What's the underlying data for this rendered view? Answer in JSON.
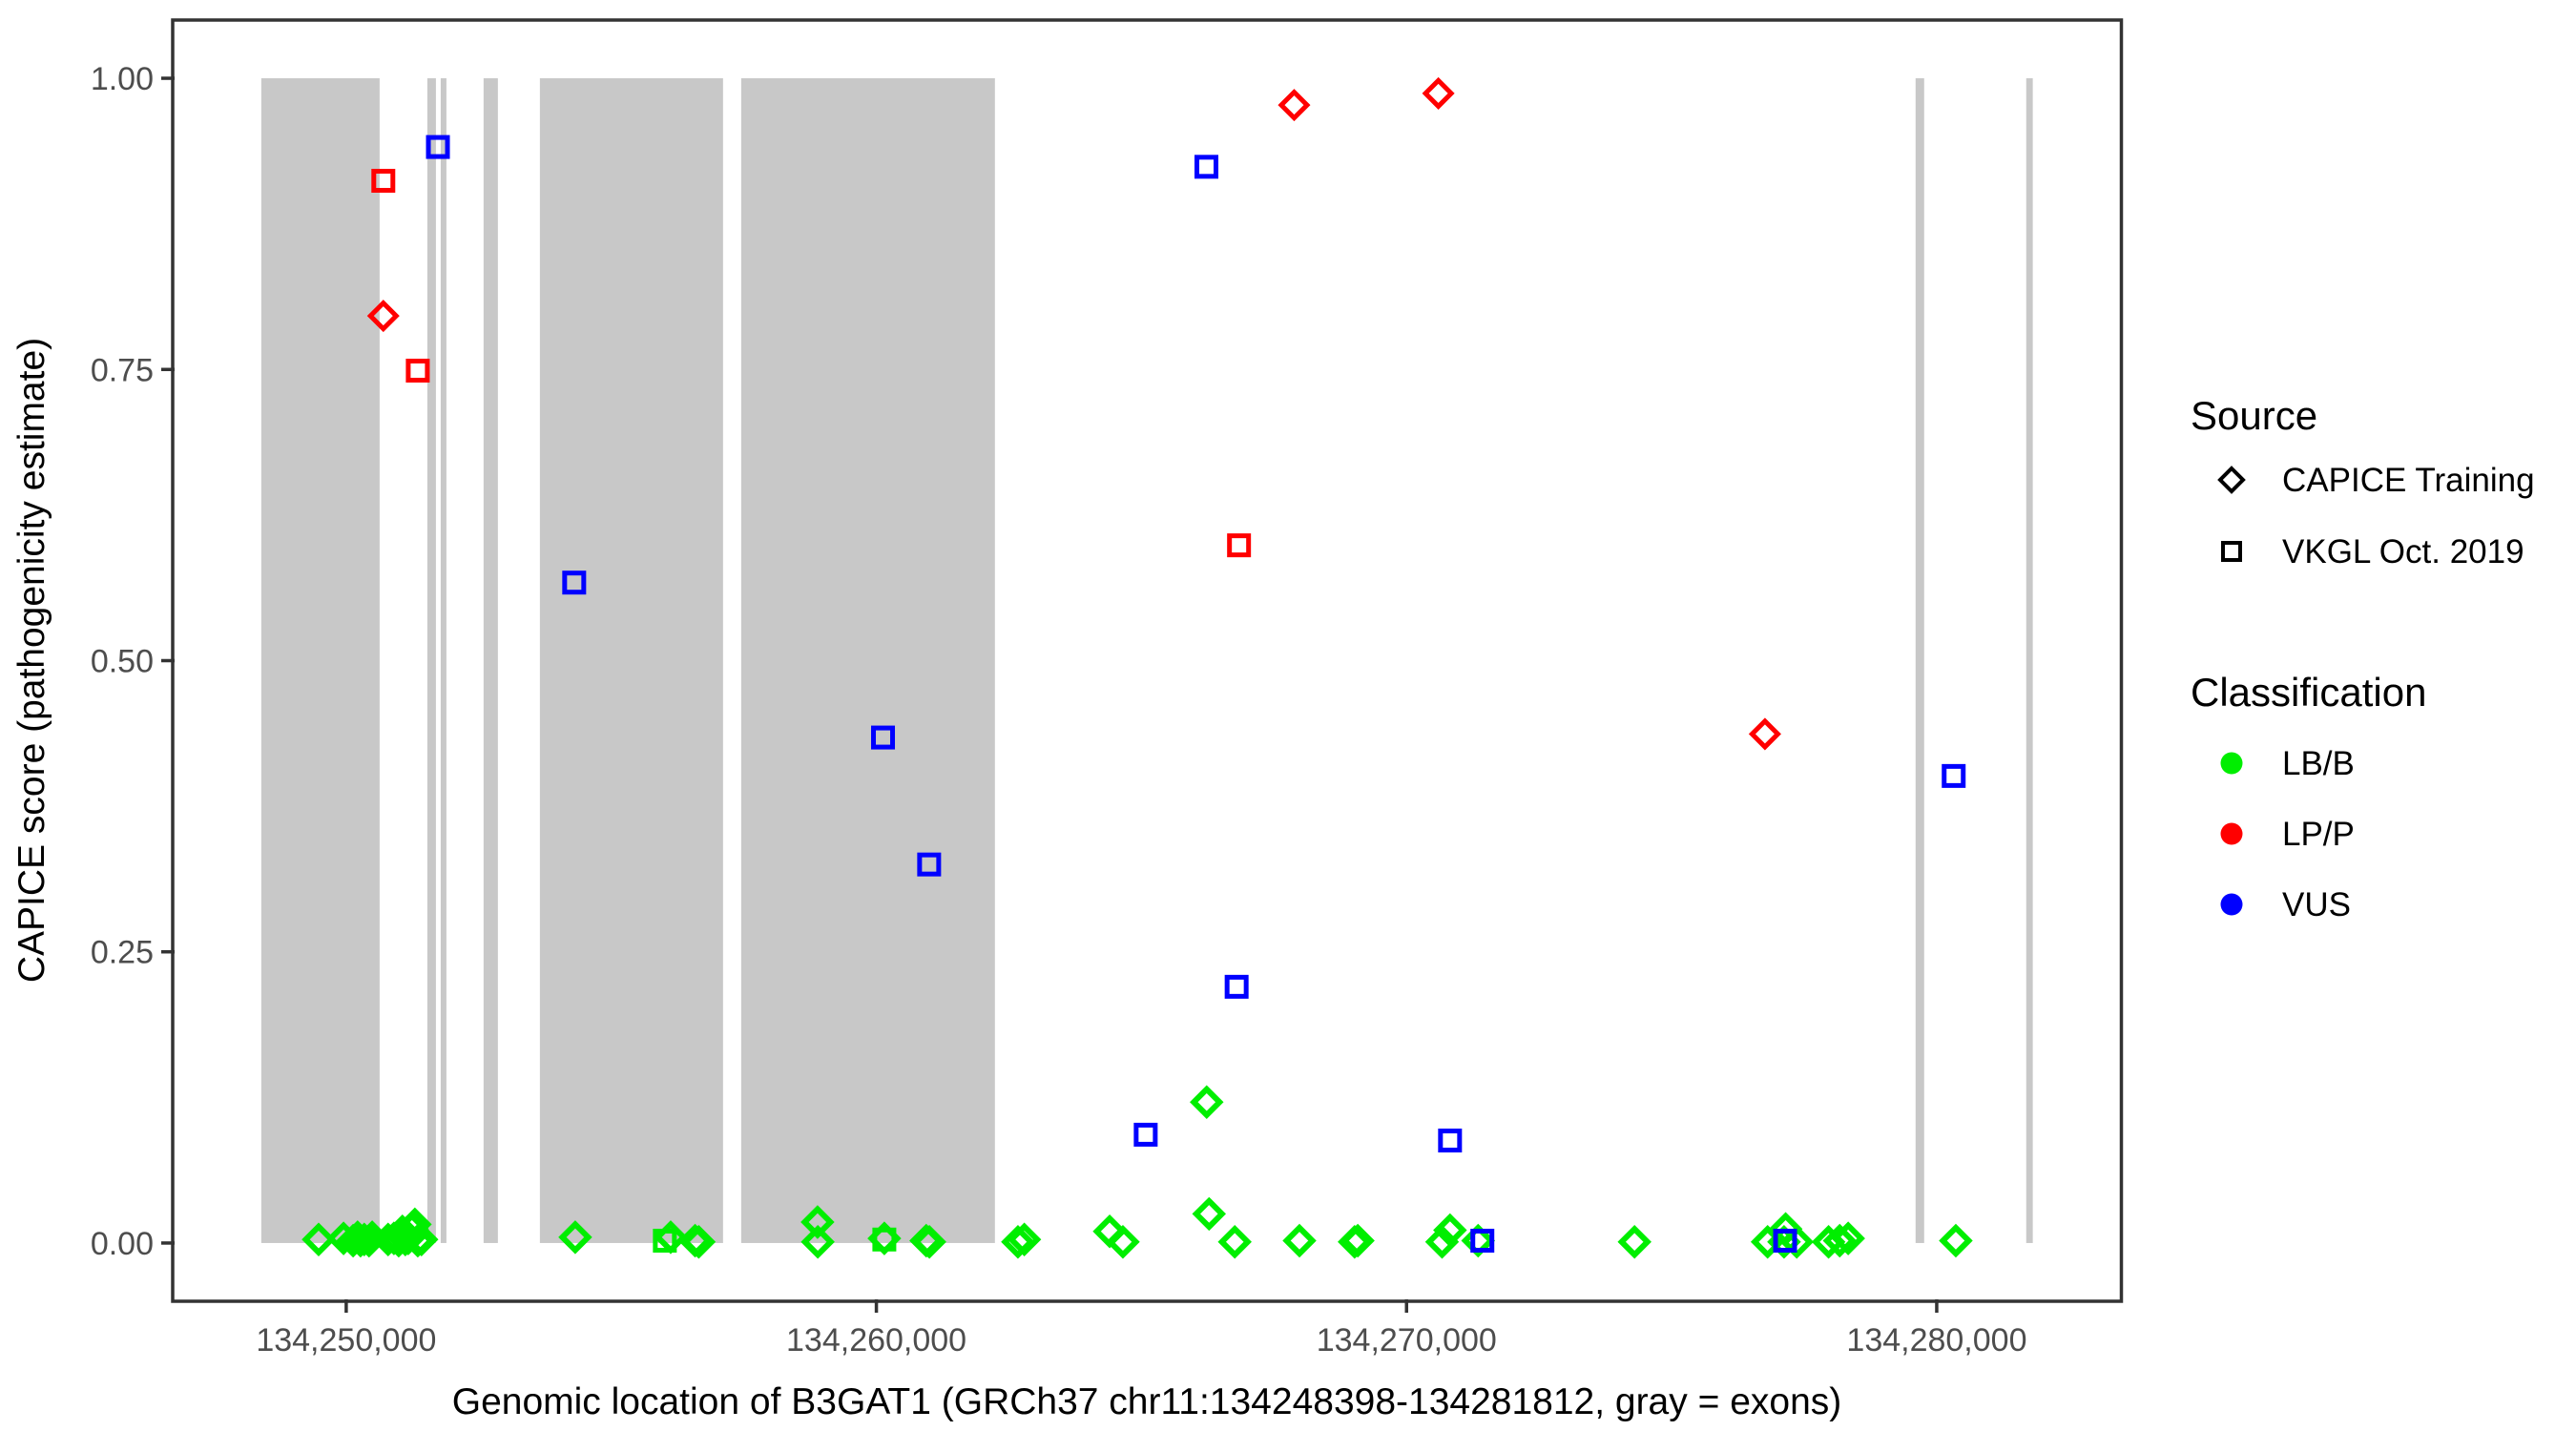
{
  "colors": {
    "lbb": "#00EE00",
    "lpp": "#FF0000",
    "vus": "#0000FF",
    "exon": "#C8C8C8",
    "panel_border": "#333333",
    "tick": "#333333",
    "tick_label": "#4D4D4D",
    "axis_title": "#000000",
    "legend_text": "#000000",
    "background": "#FFFFFF"
  },
  "legend": {
    "source": {
      "title": "Source",
      "entries": [
        {
          "label": "CAPICE Training",
          "marker": "diamond"
        },
        {
          "label": "VKGL Oct. 2019",
          "marker": "square"
        }
      ]
    },
    "classification": {
      "title": "Classification",
      "entries": [
        {
          "label": "LB/B",
          "color_key": "lbb"
        },
        {
          "label": "LP/P",
          "color_key": "lpp"
        },
        {
          "label": "VUS",
          "color_key": "vus"
        }
      ]
    }
  },
  "chart_data": {
    "type": "scatter",
    "xlabel": "Genomic location of B3GAT1 (GRCh37 chr11:134248398-134281812, gray = exons)",
    "ylabel": "CAPICE score (pathogenicity estimate)",
    "x_range": [
      134246727,
      134283483
    ],
    "y_range": [
      -0.05,
      1.05
    ],
    "grid": false,
    "legend_position": "right",
    "x_ticks": [
      {
        "value": 134250000,
        "label": "134,250,000"
      },
      {
        "value": 134260000,
        "label": "134,260,000"
      },
      {
        "value": 134270000,
        "label": "134,270,000"
      },
      {
        "value": 134280000,
        "label": "134,280,000"
      }
    ],
    "y_ticks": [
      {
        "value": 0.0,
        "label": "0.00"
      },
      {
        "value": 0.25,
        "label": "0.25"
      },
      {
        "value": 0.5,
        "label": "0.50"
      },
      {
        "value": 0.75,
        "label": "0.75"
      },
      {
        "value": 1.0,
        "label": "1.00"
      }
    ],
    "exons_note": "gray rectangles span CAPICE score 0 to 1",
    "exons": [
      [
        134248398,
        134250630
      ],
      [
        134251530,
        134251692
      ],
      [
        134251782,
        134251890
      ],
      [
        134252591,
        134252861
      ],
      [
        134253653,
        134257108
      ],
      [
        134257450,
        134262236
      ],
      [
        134279601,
        134279763
      ],
      [
        134281688,
        134281812
      ]
    ],
    "source_codes": {
      "T": "CAPICE Training",
      "V": "VKGL Oct. 2019"
    },
    "class_codes": {
      "LB/B": "lbb",
      "LP/P": "lpp",
      "VUS": "vus"
    },
    "points": [
      [
        134249480,
        0.003,
        "T",
        "LB/B"
      ],
      [
        134249950,
        0.004,
        "T",
        "LB/B"
      ],
      [
        134250130,
        0.002,
        "T",
        "LB/B"
      ],
      [
        134250215,
        0.005,
        "T",
        "LB/B"
      ],
      [
        134250270,
        0.002,
        "T",
        "LB/B"
      ],
      [
        134250340,
        0.003,
        "T",
        "LB/B"
      ],
      [
        134250430,
        0.002,
        "T",
        "LB/B"
      ],
      [
        134250490,
        0.005,
        "T",
        "LB/B"
      ],
      [
        134250790,
        0.003,
        "T",
        "LB/B"
      ],
      [
        134250900,
        0.004,
        "T",
        "LB/B"
      ],
      [
        134250990,
        0.002,
        "T",
        "LB/B"
      ],
      [
        134251060,
        0.01,
        "T",
        "LB/B"
      ],
      [
        134251115,
        0.003,
        "T",
        "LB/B"
      ],
      [
        134251170,
        0.004,
        "T",
        "LB/B"
      ],
      [
        134251240,
        0.012,
        "T",
        "LB/B"
      ],
      [
        134251295,
        0.016,
        "T",
        "LB/B"
      ],
      [
        134251350,
        0.002,
        "T",
        "LB/B"
      ],
      [
        134251420,
        0.003,
        "T",
        "LB/B"
      ],
      [
        134254320,
        0.005,
        "T",
        "LB/B"
      ],
      [
        134256120,
        0.005,
        "T",
        "LB/B"
      ],
      [
        134256580,
        0.002,
        "T",
        "LB/B"
      ],
      [
        134256650,
        0.001,
        "T",
        "LB/B"
      ],
      [
        134258890,
        0.018,
        "T",
        "LB/B"
      ],
      [
        134258895,
        0.001,
        "T",
        "LB/B"
      ],
      [
        134260150,
        0.004,
        "T",
        "LB/B"
      ],
      [
        134260940,
        0.002,
        "T",
        "LB/B"
      ],
      [
        134261000,
        0.001,
        "T",
        "LB/B"
      ],
      [
        134262670,
        0.001,
        "T",
        "LB/B"
      ],
      [
        134262790,
        0.003,
        "T",
        "LB/B"
      ],
      [
        134264400,
        0.01,
        "T",
        "LB/B"
      ],
      [
        134264650,
        0.001,
        "T",
        "LB/B"
      ],
      [
        134266230,
        0.121,
        "T",
        "LB/B"
      ],
      [
        134266275,
        0.025,
        "T",
        "LB/B"
      ],
      [
        134266760,
        0.001,
        "T",
        "LB/B"
      ],
      [
        134267980,
        0.002,
        "T",
        "LB/B"
      ],
      [
        134269020,
        0.001,
        "T",
        "LB/B"
      ],
      [
        134269080,
        0.002,
        "T",
        "LB/B"
      ],
      [
        134270670,
        0.001,
        "T",
        "LB/B"
      ],
      [
        134270820,
        0.011,
        "T",
        "LB/B"
      ],
      [
        134271350,
        0.002,
        "T",
        "LB/B"
      ],
      [
        134274300,
        0.001,
        "T",
        "LB/B"
      ],
      [
        134276810,
        0.001,
        "T",
        "LB/B"
      ],
      [
        134277120,
        0.001,
        "T",
        "LB/B"
      ],
      [
        134277150,
        0.012,
        "T",
        "LB/B"
      ],
      [
        134277360,
        0.001,
        "T",
        "LB/B"
      ],
      [
        134277960,
        0.001,
        "T",
        "LB/B"
      ],
      [
        134278170,
        0.002,
        "T",
        "LB/B"
      ],
      [
        134278330,
        0.004,
        "T",
        "LB/B"
      ],
      [
        134280360,
        0.002,
        "T",
        "LB/B"
      ],
      [
        134250700,
        0.796,
        "T",
        "LP/P"
      ],
      [
        134267880,
        0.977,
        "T",
        "LP/P"
      ],
      [
        134270600,
        0.987,
        "T",
        "LP/P"
      ],
      [
        134276760,
        0.437,
        "T",
        "LP/P"
      ],
      [
        134250700,
        0.912,
        "V",
        "LP/P"
      ],
      [
        134251350,
        0.749,
        "V",
        "LP/P"
      ],
      [
        134266840,
        0.599,
        "V",
        "LP/P"
      ],
      [
        134251730,
        0.941,
        "V",
        "VUS"
      ],
      [
        134254300,
        0.567,
        "V",
        "VUS"
      ],
      [
        134260125,
        0.434,
        "V",
        "VUS"
      ],
      [
        134260995,
        0.325,
        "V",
        "VUS"
      ],
      [
        134265080,
        0.093,
        "V",
        "VUS"
      ],
      [
        134266225,
        0.924,
        "V",
        "VUS"
      ],
      [
        134266795,
        0.22,
        "V",
        "VUS"
      ],
      [
        134270820,
        0.088,
        "V",
        "VUS"
      ],
      [
        134271430,
        0.002,
        "V",
        "VUS"
      ],
      [
        134277140,
        0.002,
        "V",
        "VUS"
      ],
      [
        134280320,
        0.401,
        "V",
        "VUS"
      ],
      [
        134256010,
        0.002,
        "V",
        "LB/B"
      ],
      [
        134260150,
        0.003,
        "V",
        "LB/B"
      ]
    ]
  }
}
